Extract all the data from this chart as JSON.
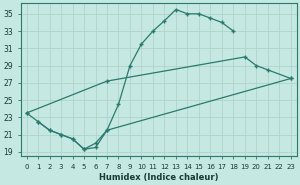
{
  "xlabel": "Humidex (Indice chaleur)",
  "background_color": "#c5e8e2",
  "grid_color": "#b0d4cc",
  "line_color": "#2a7a6e",
  "xlim": [
    -0.5,
    23.5
  ],
  "ylim": [
    18.5,
    36.2
  ],
  "ytick_labels": [
    "19",
    "21",
    "23",
    "25",
    "27",
    "29",
    "31",
    "33",
    "35"
  ],
  "ytick_vals": [
    19,
    21,
    23,
    25,
    27,
    29,
    31,
    33,
    35
  ],
  "xtick_vals": [
    0,
    1,
    2,
    3,
    4,
    5,
    6,
    7,
    8,
    9,
    10,
    11,
    12,
    13,
    14,
    15,
    16,
    17,
    18,
    19,
    20,
    21,
    22,
    23
  ],
  "curve1_x": [
    0,
    1,
    2,
    3,
    4,
    5,
    6,
    7,
    8,
    9,
    10,
    11,
    12,
    13,
    14,
    15,
    16,
    17,
    18
  ],
  "curve1_y": [
    23.5,
    22.5,
    21.5,
    21.0,
    20.5,
    19.3,
    19.5,
    21.5,
    24.5,
    29.0,
    31.5,
    33.0,
    34.2,
    35.5,
    35.0,
    35.0,
    34.5,
    34.0,
    33.0
  ],
  "curve2_x": [
    0,
    7,
    19,
    20,
    21,
    23
  ],
  "curve2_y": [
    23.5,
    27.2,
    30.0,
    29.0,
    28.5,
    27.5
  ],
  "curve3_x": [
    1,
    2,
    3,
    4,
    5,
    6,
    7,
    23
  ],
  "curve3_y": [
    22.5,
    21.5,
    21.0,
    20.5,
    19.3,
    20.0,
    21.5,
    27.5
  ],
  "marker": "+"
}
